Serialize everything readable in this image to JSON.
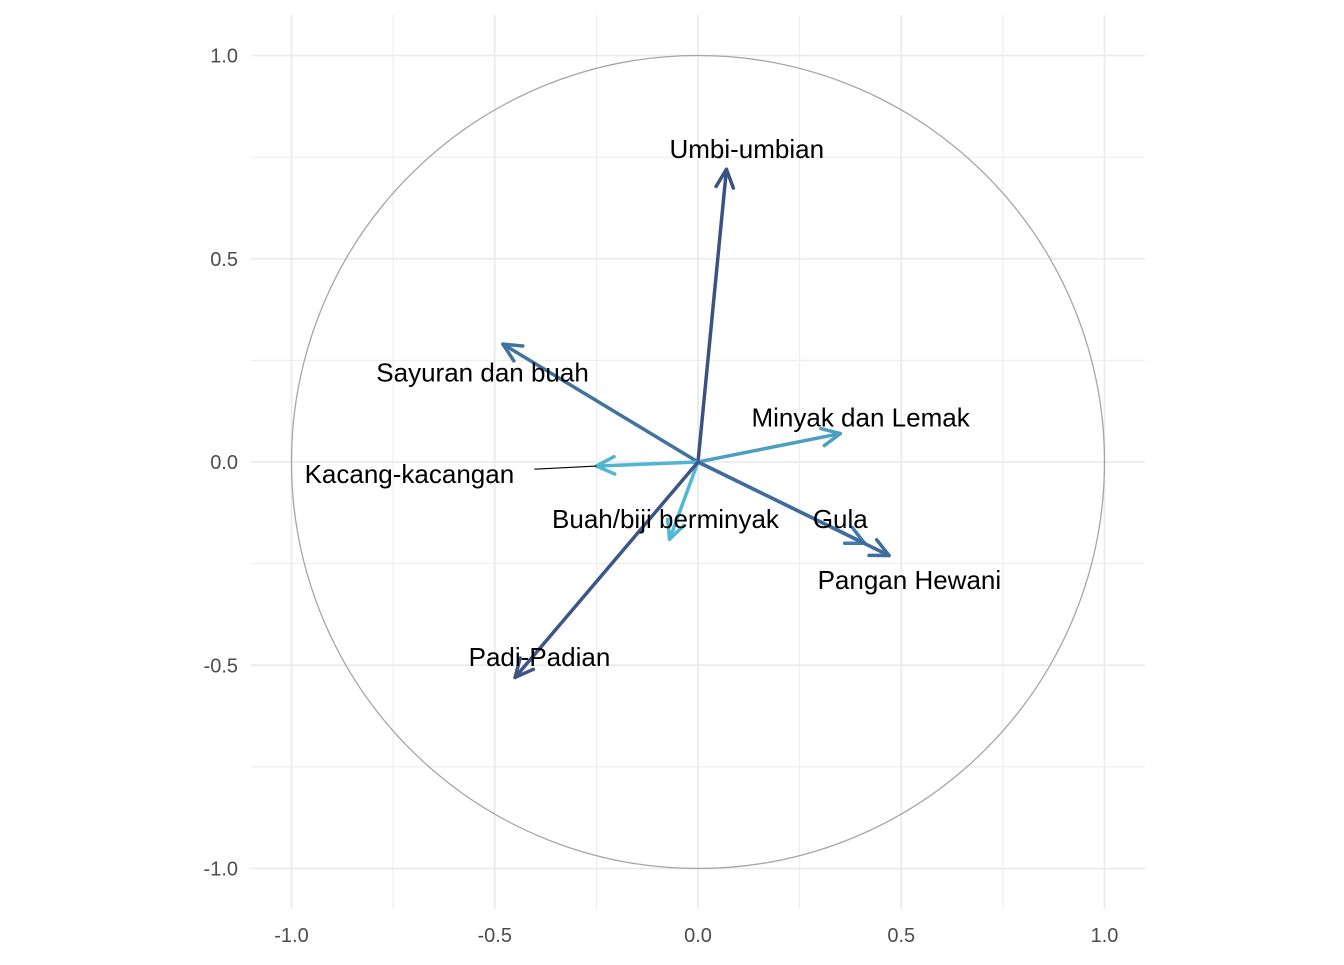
{
  "chart_data": {
    "type": "pca-variable-correlation-circle",
    "title": "",
    "xlabel": "",
    "ylabel": "",
    "xlim": [
      -1.1,
      1.1
    ],
    "ylim": [
      -1.1,
      1.1
    ],
    "x_ticks": [
      {
        "value": -1.0,
        "label": "-1.0"
      },
      {
        "value": -0.5,
        "label": "-0.5"
      },
      {
        "value": 0.0,
        "label": "0.0"
      },
      {
        "value": 0.5,
        "label": "0.5"
      },
      {
        "value": 1.0,
        "label": "1.0"
      }
    ],
    "y_ticks": [
      {
        "value": 1.0,
        "label": "1.0"
      },
      {
        "value": 0.5,
        "label": "0.5"
      },
      {
        "value": 0.0,
        "label": "0.0"
      },
      {
        "value": -0.5,
        "label": "-0.5"
      },
      {
        "value": -1.0,
        "label": "-1.0"
      }
    ],
    "grid": true,
    "circle_radius": 1.0,
    "colors": {
      "circle": "#a6a6a6",
      "grid": "#ebebeb",
      "leader": "#000000"
    },
    "variables": [
      {
        "name": "Umbi-umbian",
        "x": 0.07,
        "y": 0.72,
        "color": "#3b5180",
        "label_x": 0.12,
        "label_y": 0.77,
        "leader": false
      },
      {
        "name": "Sayuran dan buah",
        "x": -0.48,
        "y": 0.29,
        "color": "#42739f",
        "label_x": -0.53,
        "label_y": 0.22,
        "leader": false
      },
      {
        "name": "Minyak dan Lemak",
        "x": 0.35,
        "y": 0.07,
        "color": "#4c9ec3",
        "label_x": 0.4,
        "label_y": 0.11,
        "leader": false
      },
      {
        "name": "Kacang-kacangan",
        "x": -0.25,
        "y": -0.01,
        "color": "#52b4d3",
        "label_x": -0.71,
        "label_y": -0.03,
        "leader": true
      },
      {
        "name": "Buah/biji berminyak",
        "x": -0.07,
        "y": -0.19,
        "color": "#4fb8d8",
        "label_x": -0.08,
        "label_y": -0.14,
        "leader": false
      },
      {
        "name": "Gula",
        "x": 0.41,
        "y": -0.2,
        "color": "#437aa8",
        "label_x": 0.35,
        "label_y": -0.14,
        "leader": false
      },
      {
        "name": "Pangan Hewani",
        "x": 0.47,
        "y": -0.23,
        "color": "#3f6c9a",
        "label_x": 0.52,
        "label_y": -0.29,
        "leader": false
      },
      {
        "name": "Padi-Padian",
        "x": -0.45,
        "y": -0.53,
        "color": "#3d5686",
        "label_x": -0.39,
        "label_y": -0.48,
        "leader": false
      }
    ]
  }
}
